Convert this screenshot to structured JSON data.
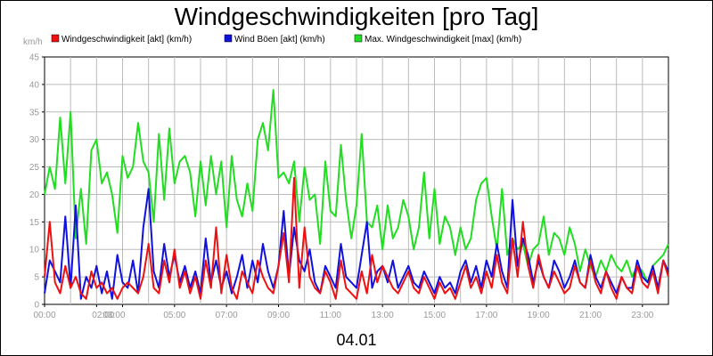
{
  "chart_data": {
    "type": "line",
    "title": "Windgeschwindigkeiten [pro Tag]",
    "ylabel": "km/h",
    "xlabel": "04.01",
    "ylim": [
      0,
      45
    ],
    "yticks": [
      "0",
      "5",
      "10",
      "15",
      "20",
      "25",
      "30",
      "35",
      "40",
      "45"
    ],
    "xlim": [
      0,
      24
    ],
    "xticks": [
      {
        "h": 0,
        "label": "00:00"
      },
      {
        "h": 2,
        "label": "02:00"
      },
      {
        "h": 3,
        "label": "03:00"
      },
      {
        "h": 5,
        "label": "05:00"
      },
      {
        "h": 7,
        "label": "07:00"
      },
      {
        "h": 9,
        "label": "09:00"
      },
      {
        "h": 11,
        "label": "11:00"
      },
      {
        "h": 13,
        "label": "13:00"
      },
      {
        "h": 15,
        "label": "15:00"
      },
      {
        "h": 17,
        "label": "17:00"
      },
      {
        "h": 19,
        "label": "19:00"
      },
      {
        "h": 21,
        "label": "21:00"
      },
      {
        "h": 23,
        "label": "23:00"
      }
    ],
    "grid": true,
    "legend_position": "top",
    "series": [
      {
        "name": "Windgeschwindigkeit [akt] (km/h)",
        "color": "#ee1111",
        "x": [
          0,
          0.2,
          0.4,
          0.6,
          0.8,
          1.0,
          1.2,
          1.4,
          1.6,
          1.8,
          2.0,
          2.2,
          2.4,
          2.6,
          2.8,
          3.0,
          3.2,
          3.4,
          3.6,
          3.8,
          4.0,
          4.2,
          4.4,
          4.6,
          4.8,
          5.0,
          5.2,
          5.4,
          5.6,
          5.8,
          6.0,
          6.2,
          6.4,
          6.6,
          6.8,
          7.0,
          7.2,
          7.4,
          7.6,
          7.8,
          8.0,
          8.2,
          8.4,
          8.6,
          8.8,
          9.0,
          9.2,
          9.4,
          9.6,
          9.8,
          10.0,
          10.2,
          10.4,
          10.6,
          10.8,
          11.0,
          11.2,
          11.4,
          11.6,
          11.8,
          12.0,
          12.2,
          12.4,
          12.6,
          12.8,
          13.0,
          13.2,
          13.4,
          13.6,
          13.8,
          14.0,
          14.2,
          14.4,
          14.6,
          14.8,
          15.0,
          15.2,
          15.4,
          15.6,
          15.8,
          16.0,
          16.2,
          16.4,
          16.6,
          16.8,
          17.0,
          17.2,
          17.4,
          17.6,
          17.8,
          18.0,
          18.2,
          18.4,
          18.6,
          18.8,
          19.0,
          19.2,
          19.4,
          19.6,
          19.8,
          20.0,
          20.2,
          20.4,
          20.6,
          20.8,
          21.0,
          21.2,
          21.4,
          21.6,
          21.8,
          22.0,
          22.2,
          22.4,
          22.6,
          22.8,
          23.0,
          23.2,
          23.4,
          23.6,
          23.8,
          24.0
        ],
        "y": [
          5,
          15,
          4,
          2,
          7,
          3,
          5,
          2,
          1,
          6,
          3,
          4,
          2,
          3,
          1,
          3,
          4,
          3,
          2,
          5,
          11,
          3,
          2,
          8,
          4,
          10,
          3,
          6,
          2,
          5,
          1,
          8,
          3,
          14,
          2,
          9,
          3,
          1,
          6,
          4,
          2,
          8,
          5,
          3,
          2,
          7,
          13,
          4,
          23,
          3,
          14,
          5,
          3,
          2,
          6,
          4,
          1,
          8,
          3,
          2,
          1,
          6,
          2,
          9,
          4,
          7,
          5,
          3,
          2,
          4,
          6,
          3,
          2,
          5,
          3,
          1,
          4,
          2,
          3,
          1,
          4,
          7,
          3,
          5,
          2,
          6,
          3,
          9,
          4,
          2,
          12,
          5,
          15,
          7,
          3,
          9,
          5,
          3,
          6,
          4,
          2,
          3,
          7,
          4,
          3,
          8,
          4,
          2,
          6,
          3,
          1,
          5,
          3,
          2,
          7,
          4,
          3,
          6,
          2,
          8,
          5
        ]
      },
      {
        "name": "Wind Böen [akt] (km/h)",
        "color": "#1111dd",
        "x": [
          0,
          0.2,
          0.4,
          0.6,
          0.8,
          1.0,
          1.2,
          1.4,
          1.6,
          1.8,
          2.0,
          2.2,
          2.4,
          2.6,
          2.8,
          3.0,
          3.2,
          3.4,
          3.6,
          3.8,
          4.0,
          4.2,
          4.4,
          4.6,
          4.8,
          5.0,
          5.2,
          5.4,
          5.6,
          5.8,
          6.0,
          6.2,
          6.4,
          6.6,
          6.8,
          7.0,
          7.2,
          7.4,
          7.6,
          7.8,
          8.0,
          8.2,
          8.4,
          8.6,
          8.8,
          9.0,
          9.2,
          9.4,
          9.6,
          9.8,
          10.0,
          10.2,
          10.4,
          10.6,
          10.8,
          11.0,
          11.2,
          11.4,
          11.6,
          11.8,
          12.0,
          12.2,
          12.4,
          12.6,
          12.8,
          13.0,
          13.2,
          13.4,
          13.6,
          13.8,
          14.0,
          14.2,
          14.4,
          14.6,
          14.8,
          15.0,
          15.2,
          15.4,
          15.6,
          15.8,
          16.0,
          16.2,
          16.4,
          16.6,
          16.8,
          17.0,
          17.2,
          17.4,
          17.6,
          17.8,
          18.0,
          18.2,
          18.4,
          18.6,
          18.8,
          19.0,
          19.2,
          19.4,
          19.6,
          19.8,
          20.0,
          20.2,
          20.4,
          20.6,
          20.8,
          21.0,
          21.2,
          21.4,
          21.6,
          21.8,
          22.0,
          22.2,
          22.4,
          22.6,
          22.8,
          23.0,
          23.2,
          23.4,
          23.6,
          23.8,
          24.0
        ],
        "y": [
          2,
          8,
          6,
          4,
          16,
          3,
          18,
          1,
          5,
          3,
          7,
          2,
          6,
          1,
          9,
          4,
          3,
          8,
          2,
          14,
          21,
          6,
          3,
          11,
          5,
          9,
          4,
          7,
          3,
          6,
          2,
          12,
          4,
          8,
          3,
          6,
          2,
          5,
          9,
          3,
          8,
          4,
          11,
          6,
          3,
          7,
          17,
          5,
          14,
          8,
          6,
          10,
          4,
          2,
          7,
          5,
          3,
          11,
          5,
          4,
          3,
          9,
          15,
          3,
          6,
          7,
          4,
          8,
          3,
          5,
          7,
          4,
          3,
          6,
          4,
          2,
          5,
          3,
          4,
          2,
          6,
          8,
          4,
          7,
          3,
          8,
          5,
          11,
          6,
          3,
          19,
          7,
          12,
          9,
          4,
          8,
          5,
          3,
          8,
          6,
          3,
          5,
          8,
          4,
          3,
          9,
          5,
          3,
          6,
          4,
          2,
          5,
          3,
          3,
          8,
          5,
          4,
          7,
          3,
          8,
          6
        ]
      },
      {
        "name": "Max. Windgeschwindigkeit [max] (km/h)",
        "color": "#22dd22",
        "x": [
          0,
          0.2,
          0.4,
          0.6,
          0.8,
          1.0,
          1.2,
          1.4,
          1.6,
          1.8,
          2.0,
          2.2,
          2.4,
          2.6,
          2.8,
          3.0,
          3.2,
          3.4,
          3.6,
          3.8,
          4.0,
          4.2,
          4.4,
          4.6,
          4.8,
          5.0,
          5.2,
          5.4,
          5.6,
          5.8,
          6.0,
          6.2,
          6.4,
          6.6,
          6.8,
          7.0,
          7.2,
          7.4,
          7.6,
          7.8,
          8.0,
          8.2,
          8.4,
          8.6,
          8.8,
          9.0,
          9.2,
          9.4,
          9.6,
          9.8,
          10.0,
          10.2,
          10.4,
          10.6,
          10.8,
          11.0,
          11.2,
          11.4,
          11.6,
          11.8,
          12.0,
          12.2,
          12.4,
          12.6,
          12.8,
          13.0,
          13.2,
          13.4,
          13.6,
          13.8,
          14.0,
          14.2,
          14.4,
          14.6,
          14.8,
          15.0,
          15.2,
          15.4,
          15.6,
          15.8,
          16.0,
          16.2,
          16.4,
          16.6,
          16.8,
          17.0,
          17.2,
          17.4,
          17.6,
          17.8,
          18.0,
          18.2,
          18.4,
          18.6,
          18.8,
          19.0,
          19.2,
          19.4,
          19.6,
          19.8,
          20.0,
          20.2,
          20.4,
          20.6,
          20.8,
          21.0,
          21.2,
          21.4,
          21.6,
          21.8,
          22.0,
          22.2,
          22.4,
          22.6,
          22.8,
          23.0,
          23.2,
          23.4,
          23.6,
          23.8,
          24.0
        ],
        "y": [
          20,
          25,
          21,
          34,
          22,
          35,
          12,
          21,
          11,
          28,
          30,
          22,
          24,
          20,
          13,
          27,
          23,
          25,
          33,
          26,
          24,
          15,
          31,
          19,
          32,
          22,
          26,
          27,
          24,
          16,
          26,
          18,
          27,
          20,
          26,
          14,
          27,
          19,
          16,
          22,
          17,
          30,
          33,
          28,
          39,
          23,
          24,
          22,
          26,
          15,
          25,
          19,
          20,
          11,
          26,
          17,
          16,
          29,
          19,
          12,
          18,
          31,
          15,
          14,
          18,
          10,
          18,
          12,
          14,
          19,
          16,
          10,
          14,
          24,
          12,
          21,
          11,
          16,
          14,
          9,
          14,
          10,
          12,
          19,
          22,
          23,
          16,
          10,
          21,
          9,
          12,
          10,
          11,
          7,
          10,
          11,
          16,
          9,
          13,
          12,
          9,
          14,
          11,
          6,
          10,
          7,
          5,
          8,
          6,
          9,
          7,
          6,
          8,
          5,
          7,
          6,
          4,
          7,
          8,
          9,
          11
        ]
      }
    ]
  }
}
